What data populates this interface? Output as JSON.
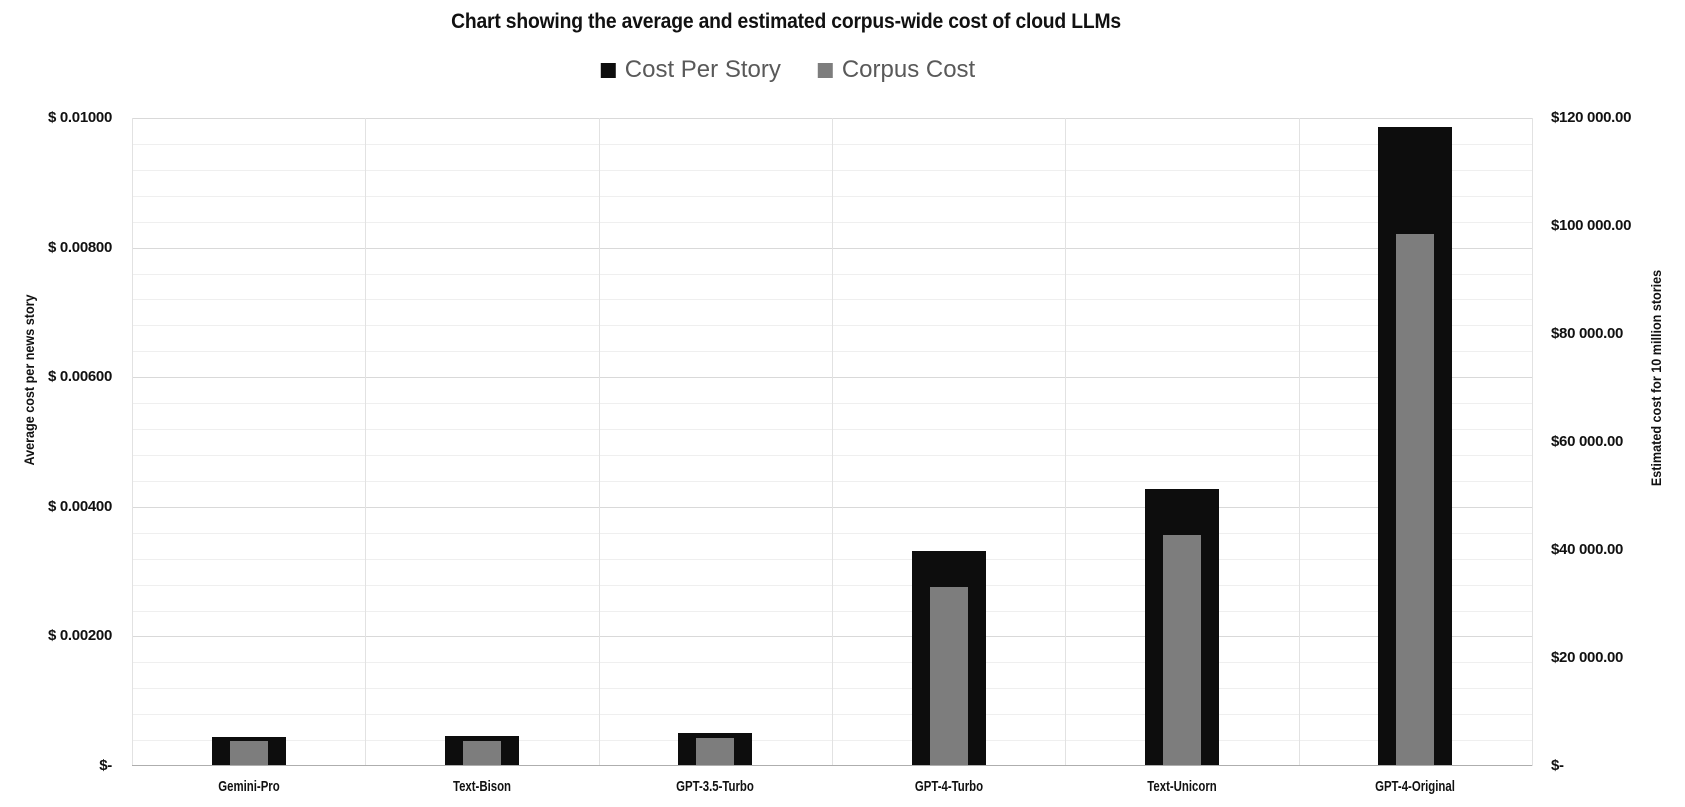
{
  "title": "Chart showing the average and estimated corpus-wide cost of cloud LLMs",
  "legend": {
    "items": [
      {
        "label": "Cost Per Story",
        "color": "#0d0d0d"
      },
      {
        "label": "Corpus Cost",
        "color": "#7d7d7d"
      }
    ]
  },
  "left_axis": {
    "title": "Average cost per news story",
    "ticks": [
      "$ 0.01000",
      "$ 0.00800",
      "$ 0.00600",
      "$ 0.00400",
      "$ 0.00200",
      "$-"
    ],
    "min": 0,
    "max": 0.01,
    "major_unit": 0.002,
    "minor_unit": 0.0004
  },
  "right_axis": {
    "title": "Estimated cost for 10 million stories",
    "ticks": [
      "$120 000.00",
      "$100 000.00",
      "$80 000.00",
      "$60 000.00",
      "$40 000.00",
      "$20 000.00",
      "$-"
    ],
    "min": 0,
    "max": 120000,
    "major_unit": 20000
  },
  "chart_data": {
    "type": "bar",
    "title": "Chart showing the average and estimated corpus-wide cost of cloud LLMs",
    "categories": [
      "Gemini-Pro",
      "Text-Bison",
      "GPT-3.5-Turbo",
      "GPT-4-Turbo",
      "Text-Unicorn",
      "GPT-4-Original"
    ],
    "series": [
      {
        "name": "Cost Per Story",
        "axis": "left",
        "color": "#0d0d0d",
        "values": [
          0.00044,
          0.00045,
          0.0005,
          0.0033,
          0.00426,
          0.00984
        ]
      },
      {
        "name": "Corpus Cost",
        "axis": "right",
        "color": "#7d7d7d",
        "values": [
          4400,
          4500,
          5000,
          33000,
          42600,
          98400
        ]
      }
    ],
    "left_ylabel": "Average cost per news story",
    "right_ylabel": "Estimated cost for 10 million stories",
    "left_ylim": [
      0,
      0.01
    ],
    "right_ylim": [
      0,
      120000
    ],
    "grid": "horizontal major+minor (left axis), vertical category boundaries",
    "legend_position": "top"
  },
  "colors": {
    "cost_per_story_bar": "#0d0d0d",
    "corpus_cost_bar": "#7d7d7d",
    "legend_text": "#595959",
    "minor_gridline": "#efefef",
    "major_gridline": "#d9d9d9",
    "axis_line": "#aeaeae"
  }
}
